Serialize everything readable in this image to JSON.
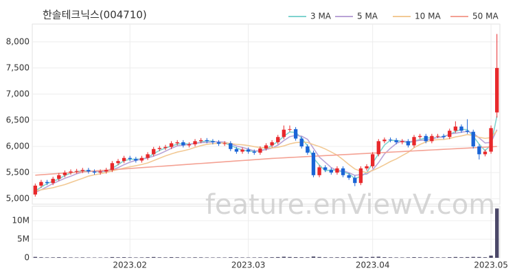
{
  "chart_data": {
    "type": "candlestick",
    "title": "한솔테크닉스(004710)",
    "watermark": "feature.enViewV.com",
    "xlim": [
      -0.5,
      78.5
    ],
    "xticks": [
      {
        "value": 16,
        "label": "2023.02"
      },
      {
        "value": 36,
        "label": "2023.03"
      },
      {
        "value": 57,
        "label": "2023.04"
      },
      {
        "value": 77,
        "label": "2023.05"
      }
    ],
    "ylim": [
      4895,
      8340
    ],
    "yticks": [
      {
        "value": 5000,
        "label": "5,000"
      },
      {
        "value": 5500,
        "label": "5,500"
      },
      {
        "value": 6000,
        "label": "6,000"
      },
      {
        "value": 6500,
        "label": "6,500"
      },
      {
        "value": 7000,
        "label": "7,000"
      },
      {
        "value": 7500,
        "label": "7,500"
      },
      {
        "value": 8000,
        "label": "8,000"
      }
    ],
    "grid": true,
    "candles": {
      "up_color": "#e8282b",
      "down_color": "#1a64d6",
      "open": [
        5080,
        5250,
        5320,
        5300,
        5380,
        5450,
        5500,
        5520,
        5530,
        5550,
        5520,
        5500,
        5520,
        5550,
        5680,
        5720,
        5780,
        5760,
        5730,
        5780,
        5850,
        5950,
        5970,
        5990,
        6060,
        6080,
        6020,
        6040,
        6100,
        6120,
        6100,
        6080,
        6050,
        6060,
        5950,
        5900,
        5940,
        5900,
        5880,
        5960,
        6020,
        6080,
        6180,
        6320,
        6330,
        6150,
        6000,
        5880,
        5450,
        5600,
        5550,
        5500,
        5580,
        5450,
        5400,
        5300,
        5580,
        5620,
        5850,
        6100,
        6130,
        6120,
        6080,
        6100,
        6020,
        6180,
        6200,
        6100,
        6200,
        6200,
        6180,
        6300,
        6380,
        6300,
        6280,
        6000,
        5850,
        5900,
        6650
      ],
      "high": [
        5290,
        5360,
        5360,
        5420,
        5490,
        5540,
        5560,
        5570,
        5590,
        5590,
        5560,
        5560,
        5590,
        5720,
        5760,
        5820,
        5820,
        5800,
        5820,
        5890,
        5990,
        6010,
        6030,
        6100,
        6120,
        6120,
        6080,
        6140,
        6160,
        6160,
        6140,
        6120,
        6100,
        6100,
        5990,
        5980,
        5980,
        5940,
        6000,
        6060,
        6120,
        6220,
        6400,
        6400,
        6370,
        6190,
        6040,
        5920,
        5640,
        5640,
        5590,
        5620,
        5620,
        5490,
        5440,
        5620,
        5660,
        5890,
        6140,
        6170,
        6170,
        6160,
        6140,
        6140,
        6220,
        6240,
        6240,
        6240,
        6240,
        6240,
        6340,
        6480,
        6420,
        6520,
        6320,
        6040,
        5940,
        6400,
        8150
      ],
      "low": [
        5040,
        5210,
        5260,
        5260,
        5340,
        5410,
        5460,
        5480,
        5490,
        5480,
        5460,
        5460,
        5480,
        5510,
        5640,
        5680,
        5720,
        5690,
        5690,
        5740,
        5810,
        5910,
        5930,
        5950,
        6020,
        5980,
        5980,
        6000,
        6060,
        6060,
        6040,
        6010,
        6010,
        5910,
        5860,
        5860,
        5860,
        5840,
        5840,
        5920,
        5980,
        6040,
        6140,
        6280,
        6110,
        5960,
        5840,
        5410,
        5410,
        5510,
        5460,
        5460,
        5410,
        5360,
        5240,
        5260,
        5540,
        5580,
        5810,
        6060,
        6080,
        6040,
        6040,
        5980,
        5980,
        6140,
        6060,
        6060,
        6160,
        6140,
        6140,
        6260,
        6260,
        6240,
        5960,
        5750,
        5810,
        5860,
        6550
      ],
      "close": [
        5250,
        5320,
        5300,
        5380,
        5450,
        5500,
        5520,
        5530,
        5550,
        5520,
        5500,
        5520,
        5550,
        5680,
        5720,
        5780,
        5760,
        5730,
        5780,
        5850,
        5950,
        5970,
        5990,
        6060,
        6080,
        6020,
        6040,
        6100,
        6120,
        6100,
        6080,
        6050,
        6060,
        5950,
        5900,
        5940,
        5900,
        5880,
        5960,
        6020,
        6080,
        6180,
        6320,
        6330,
        6150,
        6000,
        5880,
        5450,
        5600,
        5550,
        5500,
        5580,
        5450,
        5400,
        5300,
        5580,
        5620,
        5850,
        6100,
        6130,
        6120,
        6080,
        6100,
        6020,
        6180,
        6200,
        6100,
        6200,
        6200,
        6180,
        6300,
        6380,
        6300,
        6280,
        6000,
        5850,
        5900,
        6350,
        7500
      ]
    },
    "series": [
      {
        "name": "3 MA",
        "color": "#7fd3cf",
        "values": [
          5150,
          5220,
          5290,
          5333,
          5377,
          5443,
          5490,
          5517,
          5533,
          5533,
          5523,
          5513,
          5523,
          5583,
          5650,
          5727,
          5753,
          5757,
          5757,
          5787,
          5860,
          5923,
          5970,
          6007,
          6043,
          6053,
          6047,
          6053,
          6087,
          6107,
          6100,
          6077,
          6063,
          6020,
          5970,
          5930,
          5913,
          5907,
          5913,
          5953,
          6020,
          6093,
          6193,
          6277,
          6267,
          6160,
          6010,
          5777,
          5643,
          5533,
          5550,
          5543,
          5510,
          5477,
          5383,
          5427,
          5500,
          5683,
          5857,
          6027,
          6117,
          6110,
          6100,
          6067,
          6100,
          6133,
          6160,
          6167,
          6167,
          6193,
          6227,
          6287,
          6327,
          6320,
          6193,
          6043,
          5917,
          6033,
          6583
        ]
      },
      {
        "name": "5 MA",
        "color": "#b9a3d6",
        "values": [
          5120,
          5170,
          5230,
          5290,
          5340,
          5390,
          5430,
          5476,
          5510,
          5524,
          5524,
          5524,
          5528,
          5554,
          5594,
          5650,
          5698,
          5734,
          5754,
          5780,
          5814,
          5856,
          5908,
          5964,
          6010,
          6024,
          6038,
          6058,
          6072,
          6076,
          6088,
          6090,
          6082,
          6048,
          6008,
          5980,
          5950,
          5914,
          5916,
          5940,
          5968,
          6024,
          6112,
          6186,
          6212,
          6196,
          6136,
          5962,
          5796,
          5696,
          5596,
          5536,
          5536,
          5496,
          5446,
          5462,
          5470,
          5550,
          5690,
          5856,
          5964,
          6056,
          6106,
          6090,
          6100,
          6116,
          6120,
          6140,
          6176,
          6176,
          6236,
          6252,
          6272,
          6288,
          6252,
          6162,
          6066,
          6076,
          6320
        ]
      },
      {
        "name": "10 MA",
        "color": "#f2c994",
        "values": [
          5150,
          5170,
          5190,
          5210,
          5240,
          5270,
          5310,
          5350,
          5390,
          5432,
          5457,
          5477,
          5502,
          5532,
          5559,
          5587,
          5611,
          5631,
          5654,
          5684,
          5729,
          5774,
          5818,
          5856,
          5892,
          5916,
          5944,
          5981,
          6015,
          6040,
          6053,
          6061,
          6068,
          6057,
          6039,
          6031,
          6017,
          5995,
          5979,
          5971,
          5971,
          5984,
          6010,
          6048,
          6073,
          6079,
          6077,
          6034,
          5998,
          5951,
          5893,
          5833,
          5746,
          5653,
          5568,
          5526,
          5500,
          5540,
          5590,
          5648,
          5710,
          5760,
          5825,
          5887,
          5975,
          6037,
          6085,
          6120,
          6128,
          6133,
          6151,
          6181,
          6201,
          6227,
          6209,
          6174,
          6154,
          6169,
          6299
        ]
      },
      {
        "name": "50 MA",
        "color": "#f4a193",
        "values": [
          5450,
          5458,
          5466,
          5474,
          5482,
          5490,
          5498,
          5506,
          5514,
          5522,
          5530,
          5538,
          5546,
          5554,
          5562,
          5570,
          5578,
          5586,
          5594,
          5602,
          5610,
          5618,
          5626,
          5634,
          5642,
          5650,
          5658,
          5666,
          5674,
          5682,
          5690,
          5698,
          5706,
          5714,
          5722,
          5730,
          5738,
          5746,
          5754,
          5762,
          5770,
          5776,
          5782,
          5788,
          5794,
          5800,
          5806,
          5812,
          5818,
          5824,
          5830,
          5836,
          5842,
          5848,
          5854,
          5860,
          5866,
          5872,
          5878,
          5884,
          5890,
          5896,
          5902,
          5908,
          5914,
          5920,
          5926,
          5932,
          5938,
          5944,
          5950,
          5956,
          5962,
          5968,
          5974,
          5980,
          5986,
          5992,
          5998
        ]
      }
    ],
    "volume": {
      "color": "#4b4868",
      "ylim": [
        0,
        13900000
      ],
      "yticks": [
        0,
        {
          "value": 5000000,
          "label": "5M"
        },
        {
          "value": 10000000,
          "label": "10M"
        }
      ],
      "values": [
        250000,
        150000,
        120000,
        130000,
        160000,
        140000,
        110000,
        100000,
        120000,
        100000,
        90000,
        100000,
        110000,
        200000,
        150000,
        170000,
        130000,
        110000,
        120000,
        160000,
        220000,
        140000,
        130000,
        180000,
        150000,
        120000,
        110000,
        140000,
        130000,
        110000,
        100000,
        110000,
        100000,
        150000,
        130000,
        110000,
        100000,
        110000,
        130000,
        140000,
        160000,
        200000,
        300000,
        220000,
        180000,
        160000,
        150000,
        350000,
        220000,
        150000,
        130000,
        150000,
        160000,
        140000,
        200000,
        260000,
        180000,
        250000,
        300000,
        170000,
        140000,
        120000,
        110000,
        130000,
        180000,
        150000,
        140000,
        160000,
        130000,
        120000,
        170000,
        220000,
        160000,
        200000,
        250000,
        220000,
        160000,
        600000,
        13300000
      ]
    }
  }
}
